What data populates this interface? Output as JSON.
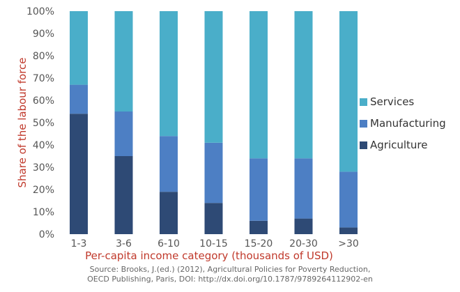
{
  "chart_data": {
    "type": "bar",
    "stacked": true,
    "categories": [
      "1-3",
      "3-6",
      "6-10",
      "10-15",
      "15-20",
      "20-30",
      ">30"
    ],
    "series": [
      {
        "name": "Agriculture",
        "values": [
          54,
          35,
          19,
          14,
          6,
          7,
          3
        ],
        "color": "#2e4a75"
      },
      {
        "name": "Manufacturing",
        "values": [
          13,
          20,
          25,
          27,
          28,
          27,
          25
        ],
        "color": "#4d7fc4"
      },
      {
        "name": "Services",
        "values": [
          33,
          45,
          56,
          59,
          66,
          66,
          72
        ],
        "color": "#4aaec9"
      }
    ],
    "xlabel": "Per-capita income category (thousands of USD)",
    "ylabel": "Share of the labour force",
    "ylim": [
      0,
      100
    ],
    "yticks": [
      "0%",
      "10%",
      "20%",
      "30%",
      "40%",
      "50%",
      "60%",
      "70%",
      "80%",
      "90%",
      "100%"
    ],
    "legend": {
      "position": "right",
      "order": [
        "Services",
        "Manufacturing",
        "Agriculture"
      ]
    },
    "grid": false
  },
  "source": {
    "line1": "Source: Brooks, J.(ed.) (2012), Agricultural Policies for Poverty Reduction,",
    "line2": "OECD Publishing, Paris, DOI: http://dx.doi.org/10.1787/9789264112902-en"
  }
}
